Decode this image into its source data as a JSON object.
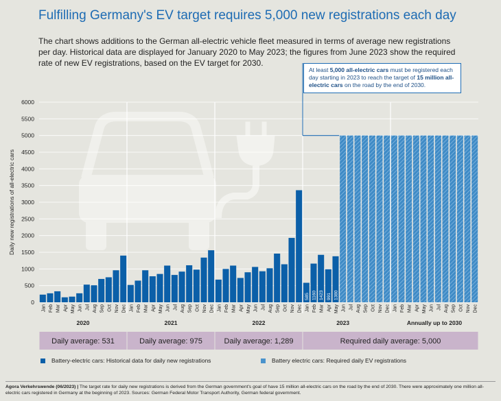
{
  "title": "Fulfilling Germany's EV target requires 5,000 new registrations each day",
  "subtitle": "The chart shows additions to the German all-electric vehicle fleet measured in terms of average new registrations per day. Historical data are displayed for January 2020 to May 2023; the figures from June 2023 show the required rate of new EV registrations, based on the EV target for 2030.",
  "callout": {
    "t1": "At least ",
    "b1": "5,000 all-electric cars",
    "t2": " must be registered each day starting in 2023 to reach the target of ",
    "b2": "15 million all-electric cars",
    "t3": " on the road by the end of 2030."
  },
  "chart_data": {
    "type": "bar",
    "ylabel": "Daily new registrations of all-electric cars",
    "ylim": [
      0,
      6000
    ],
    "yticks": [
      0,
      500,
      1000,
      1500,
      2000,
      2500,
      3000,
      3500,
      4000,
      4500,
      5000,
      5500,
      6000
    ],
    "grid": true,
    "groups": [
      {
        "label": "2020",
        "categories": [
          "Jan",
          "Feb",
          "Mar",
          "Apr",
          "May",
          "Jun",
          "Jul",
          "Aug",
          "Sep",
          "Oct",
          "Nov",
          "Dec"
        ]
      },
      {
        "label": "2021",
        "categories": [
          "Jan",
          "Feb",
          "Mar",
          "Apr",
          "May",
          "Jun",
          "Jul",
          "Aug",
          "Sep",
          "Oct",
          "Nov",
          "Dec"
        ]
      },
      {
        "label": "2022",
        "categories": [
          "Jan",
          "Feb",
          "Mar",
          "Apr",
          "May",
          "Jun",
          "Jul",
          "Aug",
          "Sep",
          "Oct",
          "Nov",
          "Dec"
        ]
      },
      {
        "label": "2023",
        "categories": [
          "Jan",
          "Feb",
          "Mar",
          "Apr",
          "May",
          "Jun",
          "Jul",
          "Aug",
          "Sep",
          "Oct",
          "Nov",
          "Dec"
        ]
      },
      {
        "label": "Annually up to 2030",
        "categories": [
          "Jan",
          "Feb",
          "Mar",
          "Apr",
          "May",
          "Jun",
          "Jul",
          "Aug",
          "Sep",
          "Oct",
          "Nov",
          "Dec"
        ]
      }
    ],
    "series": [
      {
        "name": "Battery-electric cars: Historical data for daily new registrations",
        "color": "#0b5fa8",
        "values": [
          230,
          270,
          330,
          150,
          170,
          270,
          530,
          510,
          700,
          750,
          960,
          1400,
          520,
          650,
          960,
          780,
          850,
          1100,
          820,
          920,
          1110,
          980,
          1340,
          1560,
          680,
          1000,
          1100,
          730,
          900,
          1060,
          930,
          1020,
          1460,
          1140,
          1930,
          3360,
          585,
          1160,
          1423,
          991,
          1380
        ]
      },
      {
        "name": "Battery electric cars: Required daily EV registrations",
        "color": "#4a93cc",
        "start_index": 41,
        "count": 19,
        "value": 5000
      }
    ],
    "data_labels": [
      {
        "index": 36,
        "text": "585"
      },
      {
        "index": 37,
        "text": "1160"
      },
      {
        "index": 38,
        "text": "1423"
      },
      {
        "index": 39,
        "text": "991"
      },
      {
        "index": 40,
        "text": "1380"
      }
    ],
    "reference_line": {
      "value": 5000,
      "from_index": 36,
      "to_index": 40
    }
  },
  "averages": [
    "Daily average: 531",
    "Daily average: 975",
    "Daily average: 1,289",
    "Required daily average: 5,000"
  ],
  "legend": [
    {
      "label": "Battery-electric cars: Historical data for daily new registrations",
      "color": "#0b5fa8"
    },
    {
      "label": "Battery electric cars: Required daily EV registrations",
      "color": "#4a93cc"
    }
  ],
  "footer": {
    "source_bold": "Agora Verkehrswende (06/2023) |",
    "text": " The target rate for daily new registrations is derived from the German government's goal of have 15 million all-electric cars on the road by the end of 2030. There were approximately one million all-electric cars registered in Germany at the beginning of 2023. Sources: German Federal Motor Transport Authority, German federal government."
  }
}
